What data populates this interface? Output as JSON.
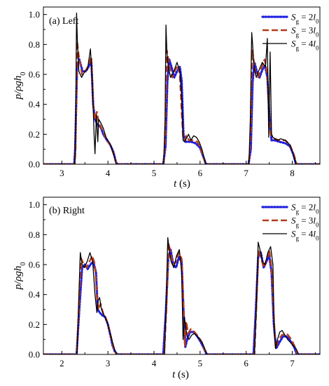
{
  "figure": {
    "ylabel_pre": "p/ρgh",
    "ylabel_sub": "0",
    "xlabel_var": "t",
    "xlabel_unit": "(s)"
  },
  "chart_data": [
    {
      "type": "line",
      "panel_label": "(a) Left",
      "xlabel": "t (s)",
      "ylabel": "p/ρgh0",
      "xlim": [
        2.6,
        8.6
      ],
      "ylim": [
        0,
        1.05
      ],
      "xticks": [
        "3",
        "4",
        "5",
        "6",
        "7",
        "8"
      ],
      "yticks": [
        "0.0",
        "0.2",
        "0.4",
        "0.6",
        "0.8",
        "1.0"
      ],
      "legend_position": "top-right",
      "series": [
        {
          "name": "Sg = 2l0",
          "color": "#1f1fe0",
          "style": "dotted",
          "x": [
            2.6,
            3.27,
            3.29,
            3.33,
            3.38,
            3.45,
            3.52,
            3.58,
            3.64,
            3.68,
            3.72,
            3.78,
            3.84,
            3.9,
            3.98,
            4.05,
            4.12,
            4.17,
            4.2,
            5.2,
            5.25,
            5.29,
            5.33,
            5.38,
            5.44,
            5.5,
            5.56,
            5.6,
            5.64,
            5.68,
            5.72,
            5.8,
            5.9,
            6.0,
            6.07,
            6.13,
            7.05,
            7.1,
            7.14,
            7.18,
            7.23,
            7.29,
            7.35,
            7.41,
            7.46,
            7.5,
            7.55,
            7.62,
            7.72,
            7.85,
            7.95,
            8.02,
            8.08,
            8.6
          ],
          "y": [
            0,
            0,
            0.1,
            0.65,
            0.7,
            0.62,
            0.62,
            0.65,
            0.69,
            0.4,
            0.3,
            0.26,
            0.25,
            0.2,
            0.16,
            0.13,
            0.08,
            0.02,
            0,
            0,
            0.12,
            0.55,
            0.7,
            0.65,
            0.58,
            0.62,
            0.65,
            0.56,
            0.2,
            0.15,
            0.15,
            0.15,
            0.14,
            0.11,
            0.05,
            0,
            0,
            0.1,
            0.55,
            0.68,
            0.62,
            0.58,
            0.63,
            0.66,
            0.58,
            0.35,
            0.16,
            0.16,
            0.15,
            0.14,
            0.12,
            0.07,
            0,
            0
          ]
        },
        {
          "name": "Sg = 3l0",
          "color": "#b33a1a",
          "style": "dashed",
          "x": [
            2.6,
            3.28,
            3.3,
            3.33,
            3.37,
            3.44,
            3.51,
            3.58,
            3.64,
            3.68,
            3.72,
            3.76,
            3.8,
            3.86,
            3.92,
            3.98,
            4.05,
            4.12,
            4.17,
            4.2,
            5.21,
            5.25,
            5.28,
            5.31,
            5.35,
            5.4,
            5.46,
            5.52,
            5.56,
            5.6,
            5.63,
            5.67,
            5.7,
            5.76,
            5.84,
            5.94,
            6.02,
            6.08,
            6.12,
            7.06,
            7.1,
            7.13,
            7.16,
            7.2,
            7.26,
            7.33,
            7.4,
            7.46,
            7.5,
            7.53,
            7.56,
            7.62,
            7.72,
            7.85,
            7.95,
            8.04,
            8.1,
            8.6
          ],
          "y": [
            0,
            0,
            0.1,
            0.82,
            0.72,
            0.6,
            0.62,
            0.66,
            0.72,
            0.4,
            0.3,
            0.35,
            0.28,
            0.24,
            0.2,
            0.16,
            0.13,
            0.07,
            0.02,
            0,
            0,
            0.2,
            0.76,
            0.7,
            0.64,
            0.58,
            0.63,
            0.66,
            0.6,
            0.35,
            0.18,
            0.16,
            0.19,
            0.16,
            0.16,
            0.15,
            0.1,
            0.04,
            0,
            0,
            0.2,
            0.76,
            0.7,
            0.62,
            0.58,
            0.64,
            0.7,
            0.6,
            0.3,
            0.2,
            0.19,
            0.17,
            0.16,
            0.16,
            0.13,
            0.06,
            0,
            0
          ]
        },
        {
          "name": "Sg = 4l0",
          "color": "#000000",
          "style": "solid",
          "x": [
            2.6,
            3.28,
            3.3,
            3.32,
            3.34,
            3.37,
            3.43,
            3.5,
            3.56,
            3.62,
            3.66,
            3.7,
            3.72,
            3.75,
            3.78,
            3.8,
            3.84,
            3.9,
            3.96,
            4.02,
            4.08,
            4.14,
            4.18,
            5.21,
            5.24,
            5.26,
            5.28,
            5.31,
            5.36,
            5.43,
            5.5,
            5.56,
            5.6,
            5.63,
            5.66,
            5.7,
            5.75,
            5.8,
            5.86,
            5.92,
            5.98,
            6.04,
            6.09,
            6.12,
            7.06,
            7.09,
            7.12,
            7.14,
            7.17,
            7.22,
            7.28,
            7.35,
            7.42,
            7.46,
            7.49,
            7.52,
            7.55,
            7.58,
            7.62,
            7.68,
            7.75,
            7.85,
            7.95,
            8.03,
            8.08,
            8.6
          ],
          "y": [
            0,
            0,
            0.3,
            1.01,
            0.8,
            0.62,
            0.58,
            0.62,
            0.64,
            0.77,
            0.55,
            0.2,
            0.07,
            0.33,
            0.15,
            0.3,
            0.28,
            0.24,
            0.18,
            0.15,
            0.11,
            0.05,
            0,
            0,
            0.3,
            0.93,
            0.75,
            0.65,
            0.58,
            0.62,
            0.68,
            0.62,
            0.45,
            0.16,
            0.15,
            0.17,
            0.2,
            0.16,
            0.19,
            0.18,
            0.15,
            0.1,
            0.04,
            0,
            0,
            0.3,
            0.88,
            0.8,
            0.65,
            0.58,
            0.63,
            0.68,
            0.65,
            0.84,
            0.18,
            0.75,
            0.2,
            0.18,
            0.17,
            0.16,
            0.17,
            0.16,
            0.13,
            0.06,
            0,
            0
          ]
        }
      ]
    },
    {
      "type": "line",
      "panel_label": "(b) Right",
      "xlabel": "t (s)",
      "ylabel": "p/ρgh0",
      "xlim": [
        1.6,
        7.6
      ],
      "ylim": [
        0,
        1.05
      ],
      "xticks": [
        "2",
        "3",
        "4",
        "5",
        "6",
        "7"
      ],
      "yticks": [
        "0.0",
        "0.2",
        "0.4",
        "0.6",
        "0.8",
        "1.0"
      ],
      "legend_position": "top-right",
      "series": [
        {
          "name": "Sg = 2l0",
          "color": "#1f1fe0",
          "style": "dotted",
          "x": [
            1.6,
            2.32,
            2.38,
            2.44,
            2.5,
            2.56,
            2.62,
            2.68,
            2.74,
            2.78,
            2.82,
            2.88,
            2.94,
            3.0,
            3.06,
            3.1,
            3.15,
            3.2,
            4.2,
            4.26,
            4.31,
            4.36,
            4.42,
            4.48,
            4.54,
            4.6,
            4.64,
            4.68,
            4.72,
            4.78,
            4.86,
            4.94,
            5.02,
            5.1,
            5.14,
            6.16,
            6.21,
            6.26,
            6.32,
            6.38,
            6.44,
            6.5,
            6.55,
            6.6,
            6.65,
            6.72,
            6.8,
            6.88,
            6.96,
            7.04,
            7.1,
            7.6
          ],
          "y": [
            0,
            0,
            0.3,
            0.58,
            0.6,
            0.57,
            0.6,
            0.62,
            0.55,
            0.3,
            0.28,
            0.26,
            0.25,
            0.2,
            0.12,
            0.06,
            0.02,
            0,
            0,
            0.3,
            0.64,
            0.7,
            0.6,
            0.58,
            0.65,
            0.62,
            0.3,
            0.05,
            0.1,
            0.15,
            0.15,
            0.12,
            0.08,
            0.03,
            0,
            0,
            0.3,
            0.65,
            0.68,
            0.58,
            0.62,
            0.66,
            0.55,
            0.2,
            0.04,
            0.08,
            0.12,
            0.12,
            0.09,
            0.05,
            0,
            0
          ]
        },
        {
          "name": "Sg = 3l0",
          "color": "#b33a1a",
          "style": "dashed",
          "x": [
            1.6,
            2.32,
            2.37,
            2.42,
            2.48,
            2.54,
            2.6,
            2.66,
            2.72,
            2.77,
            2.8,
            2.84,
            2.9,
            2.96,
            3.02,
            3.08,
            3.13,
            3.18,
            4.22,
            4.27,
            4.32,
            4.37,
            4.42,
            4.48,
            4.54,
            4.6,
            4.64,
            4.67,
            4.7,
            4.74,
            4.8,
            4.88,
            4.96,
            5.04,
            5.1,
            5.14,
            6.18,
            6.22,
            6.27,
            6.32,
            6.38,
            6.44,
            6.5,
            6.55,
            6.6,
            6.64,
            6.7,
            6.78,
            6.88,
            6.98,
            7.06,
            7.12,
            7.6
          ],
          "y": [
            0,
            0,
            0.3,
            0.64,
            0.6,
            0.58,
            0.62,
            0.66,
            0.6,
            0.35,
            0.3,
            0.34,
            0.27,
            0.24,
            0.18,
            0.1,
            0.04,
            0,
            0,
            0.3,
            0.74,
            0.66,
            0.6,
            0.62,
            0.68,
            0.64,
            0.35,
            0.05,
            0.22,
            0.14,
            0.17,
            0.15,
            0.12,
            0.08,
            0.03,
            0,
            0,
            0.3,
            0.7,
            0.65,
            0.58,
            0.63,
            0.7,
            0.58,
            0.25,
            0.04,
            0.1,
            0.13,
            0.14,
            0.1,
            0.05,
            0,
            0
          ]
        },
        {
          "name": "Sg = 4l0",
          "color": "#000000",
          "style": "solid",
          "x": [
            1.6,
            2.33,
            2.36,
            2.4,
            2.44,
            2.49,
            2.55,
            2.61,
            2.67,
            2.72,
            2.76,
            2.79,
            2.82,
            2.86,
            2.92,
            2.98,
            3.04,
            3.1,
            3.15,
            3.2,
            4.23,
            4.26,
            4.3,
            4.33,
            4.37,
            4.43,
            4.49,
            4.55,
            4.6,
            4.63,
            4.66,
            4.69,
            4.72,
            4.76,
            4.82,
            4.88,
            4.94,
            5.0,
            5.06,
            5.11,
            5.16,
            6.18,
            6.22,
            6.26,
            6.3,
            6.35,
            6.41,
            6.47,
            6.53,
            6.58,
            6.61,
            6.64,
            6.68,
            6.73,
            6.78,
            6.84,
            6.9,
            6.96,
            7.02,
            7.08,
            7.14,
            7.6
          ],
          "y": [
            0,
            0,
            0.3,
            0.68,
            0.6,
            0.58,
            0.62,
            0.68,
            0.62,
            0.4,
            0.28,
            0.36,
            0.38,
            0.3,
            0.26,
            0.22,
            0.15,
            0.08,
            0.03,
            0,
            0,
            0.3,
            0.78,
            0.7,
            0.62,
            0.58,
            0.66,
            0.7,
            0.55,
            0.1,
            0.25,
            0.18,
            0.12,
            0.1,
            0.13,
            0.14,
            0.12,
            0.1,
            0.07,
            0.03,
            0,
            0,
            0.3,
            0.75,
            0.7,
            0.62,
            0.6,
            0.68,
            0.72,
            0.6,
            0.15,
            0.04,
            0.1,
            0.15,
            0.16,
            0.13,
            0.1,
            0.08,
            0.06,
            0.04,
            0,
            0
          ]
        }
      ]
    }
  ]
}
